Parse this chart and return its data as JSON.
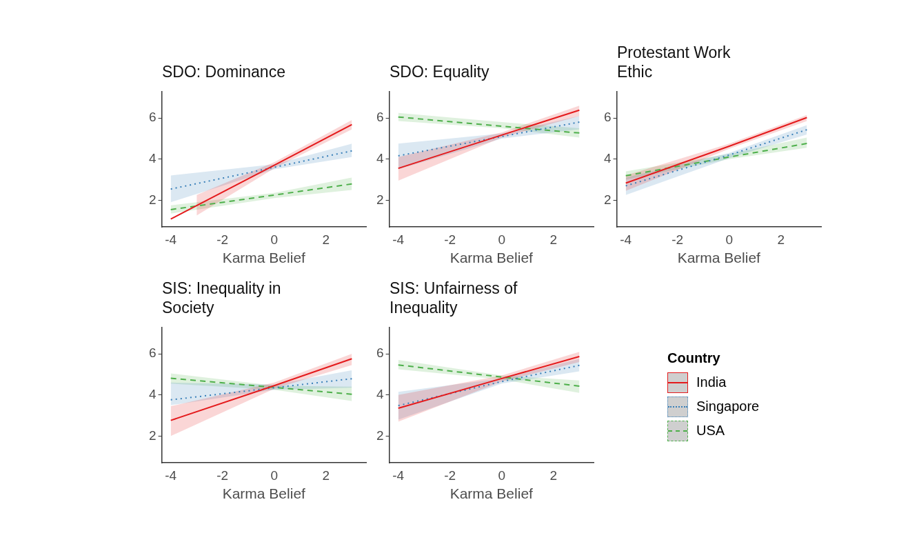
{
  "chart_data": [
    {
      "type": "line",
      "title": "SDO: Dominance",
      "xlabel": "Karma Belief",
      "xlim": [
        -4.35,
        3.55
      ],
      "xticks": [
        -4,
        -2,
        0,
        2
      ],
      "ylim": [
        0.7,
        7.3
      ],
      "yticks": [
        2,
        4,
        6
      ],
      "series": [
        {
          "color": "#e41a1c",
          "line_style": "solid",
          "x": [
            -4,
            -3,
            0,
            3
          ],
          "values": [
            1.08,
            1.74,
            3.7,
            5.68
          ],
          "lower": [
            null,
            1.25,
            3.55,
            5.45
          ],
          "upper": [
            null,
            2.25,
            3.85,
            5.9
          ]
        },
        {
          "color": "#377eb8",
          "line_style": "dotted",
          "x": [
            -4,
            0,
            3
          ],
          "values": [
            2.54,
            3.6,
            4.4
          ],
          "lower": [
            1.9,
            3.5,
            4.1
          ],
          "upper": [
            3.2,
            3.75,
            4.75
          ]
        },
        {
          "color": "#4daf4a",
          "line_style": "dashed",
          "x": [
            -4,
            0,
            3
          ],
          "values": [
            1.54,
            2.25,
            2.79
          ],
          "lower": [
            1.35,
            2.1,
            2.5
          ],
          "upper": [
            1.75,
            2.35,
            3.1
          ]
        }
      ]
    },
    {
      "type": "line",
      "title": "SDO: Equality",
      "xlabel": "Karma Belief",
      "xlim": [
        -4.35,
        3.55
      ],
      "xticks": [
        -4,
        -2,
        0,
        2
      ],
      "ylim": [
        0.7,
        7.3
      ],
      "yticks": [
        2,
        4,
        6
      ],
      "series": [
        {
          "color": "#e41a1c",
          "line_style": "solid",
          "x": [
            -4,
            0,
            3
          ],
          "values": [
            3.55,
            5.17,
            6.38
          ],
          "lower": [
            2.95,
            5.05,
            6.1
          ],
          "upper": [
            4.1,
            5.3,
            6.6
          ]
        },
        {
          "color": "#377eb8",
          "line_style": "dotted",
          "x": [
            -4,
            0,
            3
          ],
          "values": [
            4.16,
            5.1,
            5.8
          ],
          "lower": [
            3.5,
            5.0,
            5.45
          ],
          "upper": [
            4.75,
            5.25,
            6.1
          ]
        },
        {
          "color": "#4daf4a",
          "line_style": "dashed",
          "x": [
            -4,
            0,
            3
          ],
          "values": [
            6.05,
            5.6,
            5.27
          ],
          "lower": [
            5.85,
            5.5,
            5.05
          ],
          "upper": [
            6.25,
            5.8,
            5.5
          ]
        }
      ]
    },
    {
      "type": "line",
      "title": "Protestant Work Ethic",
      "xlabel": "Karma Belief",
      "xlim": [
        -4.35,
        3.55
      ],
      "xticks": [
        -4,
        -2,
        0,
        2
      ],
      "ylim": [
        0.7,
        7.3
      ],
      "yticks": [
        2,
        4,
        6
      ],
      "series": [
        {
          "color": "#e41a1c",
          "line_style": "solid",
          "x": [
            -4,
            0,
            3
          ],
          "values": [
            2.83,
            4.63,
            6.02
          ],
          "lower": [
            2.45,
            4.5,
            5.85
          ],
          "upper": [
            3.2,
            4.75,
            6.15
          ]
        },
        {
          "color": "#377eb8",
          "line_style": "dotted",
          "x": [
            -4,
            0,
            3
          ],
          "values": [
            2.7,
            4.2,
            5.43
          ],
          "lower": [
            2.25,
            4.05,
            5.2
          ],
          "upper": [
            3.1,
            4.3,
            5.65
          ]
        },
        {
          "color": "#4daf4a",
          "line_style": "dashed",
          "x": [
            -4,
            0,
            3
          ],
          "values": [
            3.19,
            4.1,
            4.76
          ],
          "lower": [
            3.0,
            4.0,
            4.55
          ],
          "upper": [
            3.4,
            4.25,
            5.05
          ]
        }
      ]
    },
    {
      "type": "line",
      "title": "SIS: Inequality in Society",
      "xlabel": "Karma Belief",
      "xlim": [
        -4.35,
        3.55
      ],
      "xticks": [
        -4,
        -2,
        0,
        2
      ],
      "ylim": [
        0.7,
        7.3
      ],
      "yticks": [
        2,
        4,
        6
      ],
      "series": [
        {
          "color": "#e41a1c",
          "line_style": "solid",
          "x": [
            -4,
            0,
            3
          ],
          "values": [
            2.76,
            4.45,
            5.76
          ],
          "lower": [
            2.0,
            4.3,
            5.45
          ],
          "upper": [
            3.45,
            4.6,
            6.0
          ]
        },
        {
          "color": "#377eb8",
          "line_style": "dotted",
          "x": [
            -4,
            0,
            3
          ],
          "values": [
            3.76,
            4.35,
            4.79
          ],
          "lower": [
            3.5,
            4.25,
            4.35
          ],
          "upper": [
            4.6,
            4.5,
            5.2
          ]
        },
        {
          "color": "#4daf4a",
          "line_style": "dashed",
          "x": [
            -4,
            0,
            3
          ],
          "values": [
            4.81,
            4.37,
            4.03
          ],
          "lower": [
            4.55,
            4.25,
            3.7
          ],
          "upper": [
            5.05,
            4.45,
            4.4
          ]
        }
      ]
    },
    {
      "type": "line",
      "title": "SIS: Unfairness of Inequality",
      "xlabel": "Karma Belief",
      "xlim": [
        -4.35,
        3.55
      ],
      "xticks": [
        -4,
        -2,
        0,
        2
      ],
      "ylim": [
        0.7,
        7.3
      ],
      "yticks": [
        2,
        4,
        6
      ],
      "legend": "right",
      "legend_title": "Country",
      "series": [
        {
          "name": "India",
          "color": "#e41a1c",
          "line_style": "solid",
          "x": [
            -4,
            0,
            3
          ],
          "values": [
            3.35,
            4.8,
            5.87
          ],
          "lower": [
            2.7,
            4.65,
            5.6
          ],
          "upper": [
            4.0,
            4.95,
            6.1
          ]
        },
        {
          "name": "Singapore",
          "color": "#377eb8",
          "line_style": "dotted",
          "x": [
            -4,
            0,
            3
          ],
          "values": [
            3.48,
            4.65,
            5.44
          ],
          "lower": [
            2.8,
            4.55,
            5.15
          ],
          "upper": [
            4.15,
            4.8,
            5.75
          ]
        },
        {
          "name": "USA",
          "color": "#4daf4a",
          "line_style": "dashed",
          "x": [
            -4,
            0,
            3
          ],
          "values": [
            5.46,
            4.87,
            4.43
          ],
          "lower": [
            5.25,
            4.75,
            4.1
          ],
          "upper": [
            5.7,
            4.95,
            4.7
          ]
        }
      ]
    }
  ]
}
